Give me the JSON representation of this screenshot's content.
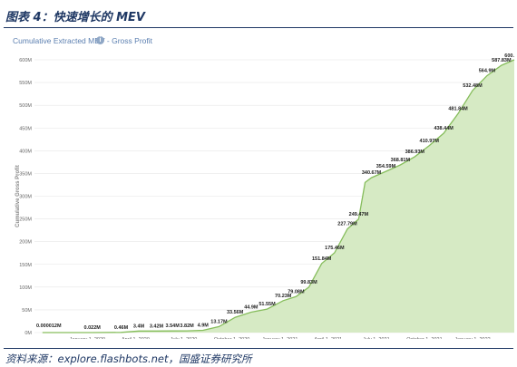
{
  "figure_title": "图表 4：快速增长的 MEV",
  "source": "资料来源：explore.flashbots.net，国盛证券研究所",
  "info_icon": "info-icon",
  "colors": {
    "fill": "#d6eac4",
    "line": "#86bd5c",
    "grid": "#e6e6e6",
    "title_blue": "#1f3864"
  },
  "chart_data": {
    "type": "area",
    "title": "Cumulative Extracted MEV - Gross Profit",
    "xlabel": "",
    "ylabel": "Cumulative Gross Profit",
    "ylim": [
      0,
      600
    ],
    "y_ticks": [
      "0M",
      "50M",
      "100M",
      "150M",
      "200M",
      "250M",
      "300M",
      "350M",
      "400M",
      "450M",
      "500M",
      "550M",
      "600M"
    ],
    "x_ticks": [
      {
        "label": "January 1, 2020",
        "t": 0
      },
      {
        "label": "April 1, 2020",
        "t": 3
      },
      {
        "label": "July 1, 2020",
        "t": 6
      },
      {
        "label": "October 1, 2020",
        "t": 9
      },
      {
        "label": "January 1, 2021",
        "t": 12
      },
      {
        "label": "April 1, 2021",
        "t": 15
      },
      {
        "label": "July 1, 2021",
        "t": 18
      },
      {
        "label": "October 1, 2021",
        "t": 21
      },
      {
        "label": "January 1, 2022",
        "t": 24
      }
    ],
    "x_unit": "months since January 1, 2020",
    "x_max": 26.6,
    "points": [
      {
        "t": -2.8,
        "v": 1.2e-05,
        "label": "0.000012M"
      },
      {
        "t": -0.3,
        "v": 0.022,
        "label": ""
      },
      {
        "t": 0.3,
        "v": 0.022,
        "label": "0.022M"
      },
      {
        "t": 2.1,
        "v": 0.46,
        "label": "0.46M"
      },
      {
        "t": 3.2,
        "v": 3.4,
        "label": "3.4M"
      },
      {
        "t": 4.3,
        "v": 3.42,
        "label": "3.42M"
      },
      {
        "t": 5.3,
        "v": 3.54,
        "label": "3.54M"
      },
      {
        "t": 6.2,
        "v": 3.82,
        "label": "3.82M"
      },
      {
        "t": 7.2,
        "v": 4.9,
        "label": "4.9M"
      },
      {
        "t": 8.2,
        "v": 13.17,
        "label": "13.17M"
      },
      {
        "t": 9.2,
        "v": 33.56,
        "label": "33.56M"
      },
      {
        "t": 10.2,
        "v": 44.9,
        "label": "44.9M"
      },
      {
        "t": 11.2,
        "v": 51.55,
        "label": "51.55M"
      },
      {
        "t": 12.2,
        "v": 70.23,
        "label": "70.23M"
      },
      {
        "t": 13.0,
        "v": 79.08,
        "label": "79.08M"
      },
      {
        "t": 13.8,
        "v": 99.83,
        "label": "99.83M"
      },
      {
        "t": 14.6,
        "v": 151.84,
        "label": "151.84M"
      },
      {
        "t": 15.4,
        "v": 175.46,
        "label": "175.46M"
      },
      {
        "t": 16.2,
        "v": 227.79,
        "label": "227.79M"
      },
      {
        "t": 16.9,
        "v": 249.47,
        "label": "249.47M"
      },
      {
        "t": 17.3,
        "v": 330.0,
        "label": ""
      },
      {
        "t": 17.7,
        "v": 340.67,
        "label": "340.67M"
      },
      {
        "t": 18.6,
        "v": 354.59,
        "label": "354.59M"
      },
      {
        "t": 19.5,
        "v": 368.81,
        "label": "368.81M"
      },
      {
        "t": 20.4,
        "v": 386.93,
        "label": "386.93M"
      },
      {
        "t": 21.3,
        "v": 410.97,
        "label": "410.97M"
      },
      {
        "t": 22.2,
        "v": 438.44,
        "label": "438.44M"
      },
      {
        "t": 23.1,
        "v": 481.84,
        "label": "481.84M"
      },
      {
        "t": 24.0,
        "v": 532.48,
        "label": "532.48M"
      },
      {
        "t": 24.9,
        "v": 564.9,
        "label": "564.9M"
      },
      {
        "t": 25.8,
        "v": 587.83,
        "label": "587.83M"
      },
      {
        "t": 26.6,
        "v": 600,
        "label": "600."
      }
    ]
  }
}
